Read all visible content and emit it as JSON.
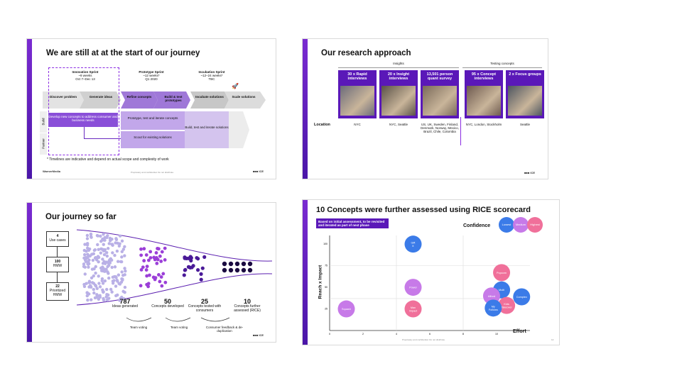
{
  "slide1": {
    "title": "We are still at at the start of our journey",
    "phases": [
      {
        "name": "Innovation Sprint",
        "duration": "~9 weeks",
        "date": "Oct 7–Dec 13"
      },
      {
        "name": "Prototype Sprint",
        "duration": "~12 weeks*",
        "date": "Q1 2020"
      },
      {
        "name": "Incubation Sprint",
        "duration": "~12–24 weeks*",
        "date": "TBC"
      }
    ],
    "steps": [
      "Discover problem",
      "Generate ideas",
      "Refine concepts",
      "Build & test prototypes",
      "Incubate solutions",
      "Scale solutions"
    ],
    "rows": [
      "Build",
      "Partner"
    ],
    "box1": "Develop new concepts to address consumer and business needs",
    "box2": "Prototype, test and iterate concepts",
    "box3": "Scout for existing solutions",
    "box4": "Build, test and iterate solutions",
    "footnote": "* Timelines are indicative and depend on actual scope and complexity of work",
    "logo_left": "WarnerMedia",
    "footer": "Proprietary and confidential. Do not distribute.",
    "logo_right": "■■■ ICE"
  },
  "slide2": {
    "title": "Our research approach",
    "group_insights": "Insights",
    "group_testing": "Testing concepts",
    "cards": [
      {
        "label": "30 x Rapid interviews",
        "location": "NYC"
      },
      {
        "label": "20 x Insight interviews",
        "location": "NYC, Seattle"
      },
      {
        "label": "13,501 person quant survey",
        "location": "US, UK, Sweden, Finland, Denmark, Norway, Mexico, Brazil, Chile, Colombia"
      },
      {
        "label": "95 x Concept interviews",
        "location": "NYC, London, Stockholm"
      },
      {
        "label": "2 x Focus groups",
        "location": "Seattle"
      }
    ],
    "location_label": "Location",
    "logo_right": "■■■ ICE"
  },
  "slide3": {
    "title": "Our journey so far",
    "boxes": [
      {
        "num": "4",
        "label": "Use cases"
      },
      {
        "num": "100",
        "label": "HMW"
      },
      {
        "num": "22",
        "label": "Prioritized HMW"
      }
    ],
    "stats": [
      {
        "num": "787",
        "label": "Ideas generated"
      },
      {
        "num": "50",
        "label": "Concepts developed"
      },
      {
        "num": "25",
        "label": "Concepts tested with consumers"
      },
      {
        "num": "10",
        "label": "Concepts further assessed (RICE)"
      }
    ],
    "steps": [
      "Team voting",
      "Team voting",
      "Consumer feedback & de-duplication"
    ],
    "logo_right": "■■■ ICE"
  },
  "slide4": {
    "title": "10 Concepts were further assessed using RICE scorecard",
    "note": "Based on initial assessment, to be revisited and iterated as part of next phase",
    "confidence_label": "Confidence",
    "confidence_levels": [
      {
        "label": "Lowest",
        "color": "#3b7be8"
      },
      {
        "label": "Medium",
        "color": "#c77ae8"
      },
      {
        "label": "Highest",
        "color": "#f0709a"
      }
    ],
    "chart_data": {
      "type": "scatter",
      "xlabel": "Effort",
      "ylabel": "Reach x Impact",
      "xlim": [
        0,
        12
      ],
      "ylim": [
        0,
        110
      ],
      "xticks": [
        "0",
        "2",
        "4",
        "6",
        "8",
        "10"
      ],
      "yticks": [
        "25",
        "50",
        "75",
        "100"
      ],
      "points": [
        {
          "name": "Gift it",
          "x": 5,
          "y": 100,
          "confidence": "Lowest"
        },
        {
          "name": "Squash",
          "x": 1,
          "y": 25,
          "confidence": "Medium"
        },
        {
          "name": "Power",
          "x": 5,
          "y": 50,
          "confidence": "Medium"
        },
        {
          "name": "Max Impact",
          "x": 5,
          "y": 25,
          "confidence": "Highest"
        },
        {
          "name": "Popcorn",
          "x": 10.3,
          "y": 67,
          "confidence": "Highest"
        },
        {
          "name": "Multi",
          "x": 10.3,
          "y": 47,
          "confidence": "Lowest"
        },
        {
          "name": "Afford",
          "x": 9.7,
          "y": 40,
          "confidence": "Medium"
        },
        {
          "name": "Complex",
          "x": 11.5,
          "y": 39,
          "confidence": "Lowest"
        },
        {
          "name": "Kids Takeover",
          "x": 10.6,
          "y": 29,
          "confidence": "Highest"
        },
        {
          "name": "My Follows",
          "x": 9.8,
          "y": 26,
          "confidence": "Lowest"
        }
      ]
    },
    "footer": "Proprietary and confidential. Do not distribute.",
    "page": "14"
  }
}
